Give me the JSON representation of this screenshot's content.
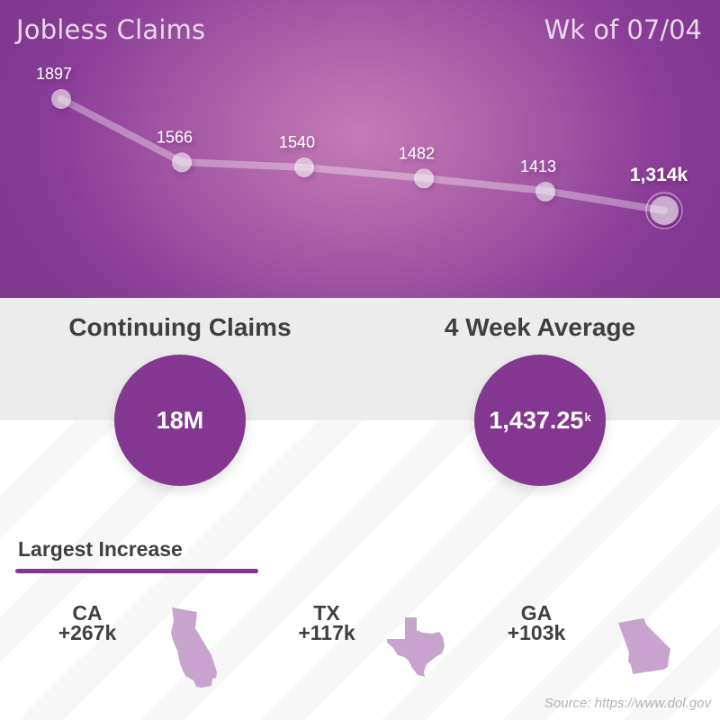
{
  "header": {
    "title": "Jobless Claims",
    "week": "Wk of 07/04"
  },
  "chart_data": {
    "type": "line",
    "title": "Jobless Claims",
    "subtitle": "Wk of 07/04",
    "x": [
      1,
      2,
      3,
      4,
      5,
      6
    ],
    "values": [
      1897,
      1566,
      1540,
      1482,
      1413,
      1314
    ],
    "labels": [
      "1897",
      "1566",
      "1540",
      "1482",
      "1413",
      "1,314k"
    ],
    "unit": "thousands",
    "grid": false,
    "xlabel": "",
    "ylabel": ""
  },
  "stats": {
    "continuing": {
      "title": "Continuing Claims",
      "value": "18M"
    },
    "average": {
      "title": "4 Week Average",
      "value": "1,437.25",
      "suffix": "k"
    }
  },
  "increase": {
    "title": "Largest Increase",
    "states": [
      {
        "code": "CA",
        "change": "+267k"
      },
      {
        "code": "TX",
        "change": "+117k"
      },
      {
        "code": "GA",
        "change": "+103k"
      }
    ]
  },
  "colors": {
    "accent": "#833790",
    "state_fill": "#c8a3cd",
    "gray_band": "#ececec",
    "text_dark": "#3f3f3f"
  },
  "source": "Source: https://www.dol.gov"
}
